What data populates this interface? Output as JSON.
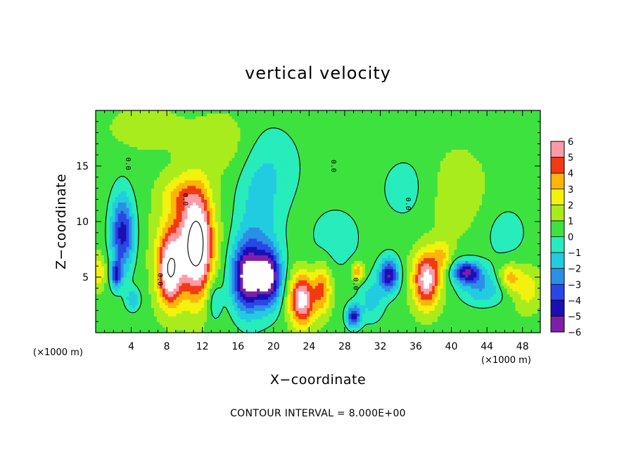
{
  "chart_data": {
    "type": "heatmap",
    "title": "vertical velocity",
    "xlabel": "X−coordinate",
    "ylabel": "Z−coordinate",
    "x_unit_left": "(×1000 m)",
    "x_unit_right": "(×1000 m)",
    "xlim": [
      0,
      50
    ],
    "ylim": [
      0,
      20
    ],
    "x_ticks": [
      4,
      8,
      12,
      16,
      20,
      24,
      28,
      32,
      36,
      40,
      44,
      48
    ],
    "x_tick_labels": [
      "4",
      "8",
      "12",
      "16",
      "20",
      "24",
      "28",
      "32",
      "36",
      "40",
      "44",
      "48"
    ],
    "y_ticks": [
      5,
      10,
      15
    ],
    "y_tick_labels": [
      "5",
      "10",
      "15"
    ],
    "contour_note": "CONTOUR INTERVAL = 8.000E+00",
    "zero_contour_label": "0.0",
    "colorbar": {
      "min": -6,
      "max": 6,
      "labels": [
        "6",
        "5",
        "4",
        "3",
        "2",
        "1",
        "0",
        "−1",
        "−2",
        "−3",
        "−4",
        "−5",
        "−6"
      ],
      "values": [
        6,
        5,
        4,
        3,
        2,
        1,
        0,
        -1,
        -2,
        -3,
        -4,
        -5,
        -6
      ]
    },
    "background_value": 0.6,
    "features": [
      {
        "x": 3.0,
        "z": 9.0,
        "sx": 1.3,
        "sz": 3.5,
        "amp": -5.0
      },
      {
        "x": 2.3,
        "z": 5.2,
        "sx": 0.6,
        "sz": 1.2,
        "amp": -4.0
      },
      {
        "x": 4.2,
        "z": 3.0,
        "sx": 0.8,
        "sz": 1.0,
        "amp": -2.5
      },
      {
        "x": 0.3,
        "z": 5.5,
        "sx": 0.8,
        "sz": 1.5,
        "amp": 2.5
      },
      {
        "x": 8.3,
        "z": 5.5,
        "sx": 1.3,
        "sz": 3.0,
        "amp": 5.8
      },
      {
        "x": 11.5,
        "z": 8.0,
        "sx": 1.6,
        "sz": 4.5,
        "amp": 6.2
      },
      {
        "x": 10.0,
        "z": 8.0,
        "sx": 2.8,
        "sz": 4.8,
        "amp": 3.5
      },
      {
        "x": 9.6,
        "z": 12.5,
        "sx": 2.2,
        "sz": 1.6,
        "amp": 1.6
      },
      {
        "x": 13.3,
        "z": 3.0,
        "sx": 0.9,
        "sz": 2.0,
        "amp": -1.8
      },
      {
        "x": 17.0,
        "z": 5.0,
        "sx": 1.7,
        "sz": 3.0,
        "amp": -6.5
      },
      {
        "x": 19.5,
        "z": 5.0,
        "sx": 1.4,
        "sz": 2.5,
        "amp": -6.0
      },
      {
        "x": 18.2,
        "z": 9.0,
        "sx": 2.5,
        "sz": 6.5,
        "amp": -2.0
      },
      {
        "x": 20.0,
        "z": 15.0,
        "sx": 3.5,
        "sz": 4.0,
        "amp": -1.2
      },
      {
        "x": 23.2,
        "z": 3.0,
        "sx": 1.4,
        "sz": 2.3,
        "amp": 6.2
      },
      {
        "x": 25.5,
        "z": 4.0,
        "sx": 1.0,
        "sz": 2.2,
        "amp": 3.5
      },
      {
        "x": 27.0,
        "z": 8.5,
        "sx": 3.0,
        "sz": 3.0,
        "amp": -1.2
      },
      {
        "x": 29.0,
        "z": 1.5,
        "sx": 0.8,
        "sz": 1.0,
        "amp": -5.0
      },
      {
        "x": 29.5,
        "z": 5.5,
        "sx": 0.7,
        "sz": 0.8,
        "amp": 3.5
      },
      {
        "x": 33.0,
        "z": 5.2,
        "sx": 1.1,
        "sz": 1.5,
        "amp": -5.5
      },
      {
        "x": 31.0,
        "z": 3.0,
        "sx": 1.5,
        "sz": 2.0,
        "amp": -2.0
      },
      {
        "x": 37.2,
        "z": 4.8,
        "sx": 1.5,
        "sz": 2.5,
        "amp": 6.0
      },
      {
        "x": 39.0,
        "z": 7.0,
        "sx": 1.0,
        "sz": 1.5,
        "amp": 2.0
      },
      {
        "x": 41.7,
        "z": 5.5,
        "sx": 1.6,
        "sz": 1.0,
        "amp": -5.5
      },
      {
        "x": 43.5,
        "z": 4.0,
        "sx": 2.5,
        "sz": 1.5,
        "amp": -2.5
      },
      {
        "x": 46.5,
        "z": 5.0,
        "sx": 1.2,
        "sz": 1.2,
        "amp": 3.0
      },
      {
        "x": 48.5,
        "z": 4.0,
        "sx": 1.5,
        "sz": 2.0,
        "amp": 2.0
      },
      {
        "x": 46.0,
        "z": 9.0,
        "sx": 3.0,
        "sz": 3.0,
        "amp": -1.0
      },
      {
        "x": 35.0,
        "z": 13.0,
        "sx": 3.5,
        "sz": 3.5,
        "amp": -1.0
      },
      {
        "x": 40.5,
        "z": 12.5,
        "sx": 3.5,
        "sz": 4.0,
        "amp": 1.2
      },
      {
        "x": 14.5,
        "z": 17.0,
        "sx": 4.0,
        "sz": 3.0,
        "amp": 1.0
      },
      {
        "x": 5.5,
        "z": 18.5,
        "sx": 4.0,
        "sz": 2.0,
        "amp": 1.0
      }
    ]
  }
}
